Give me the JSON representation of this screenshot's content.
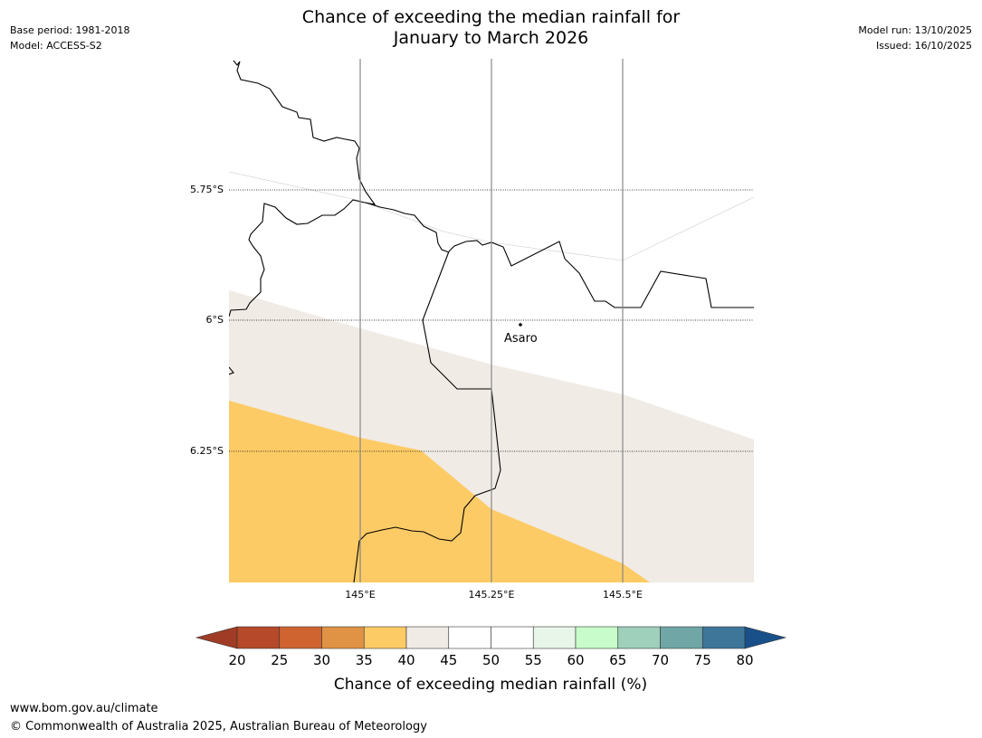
{
  "header": {
    "base_period": "Base period: 1981-2018",
    "model": "Model: ACCESS-S2",
    "model_run": "Model run: 13/10/2025",
    "issued": "Issued: 16/10/2025",
    "title_line1": "Chance of exceeding the median rainfall for",
    "title_line2": "January to March 2026"
  },
  "map": {
    "lat_labels": [
      "5.75°S",
      "6°S",
      "6.25°S"
    ],
    "lon_labels": [
      "145°E",
      "145.25°E",
      "145.5°E"
    ],
    "place_label": "Asaro",
    "legend_colors": {
      "35-40": "#fdcb65",
      "40-45": "#f0ebe5",
      "45-55": "#ffffff"
    }
  },
  "colorbar": {
    "tick_labels": [
      "20",
      "25",
      "30",
      "35",
      "40",
      "45",
      "50",
      "55",
      "60",
      "65",
      "70",
      "75",
      "80"
    ],
    "label": "Chance of exceeding median rainfall (%)",
    "colors": [
      "#a03c25",
      "#b5492a",
      "#cf6431",
      "#e09345",
      "#fdcb65",
      "#f0ebe5",
      "#ffffff",
      "#ffffff",
      "#e8f5e9",
      "#c8fcca",
      "#9ed0bb",
      "#70a6a6",
      "#3d7698",
      "#195089"
    ]
  },
  "footer": {
    "url": "www.bom.gov.au/climate",
    "copyright": "© Commonwealth of Australia 2025, Australian Bureau of Meteorology"
  }
}
